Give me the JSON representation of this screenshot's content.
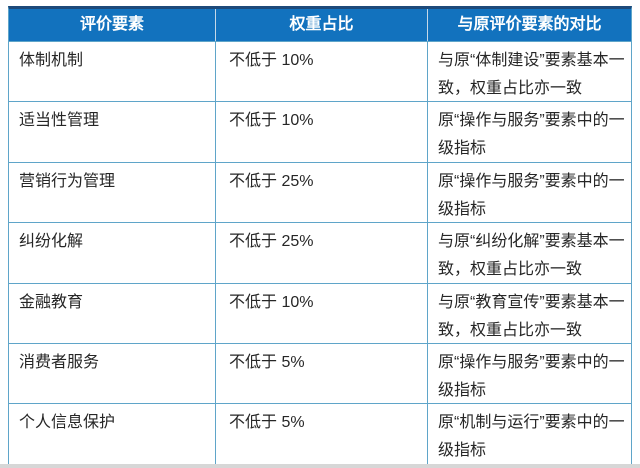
{
  "theme": {
    "header_bg": "#1272BE",
    "header_text": "#FFFFFF",
    "header_divider": "#C5D8E8",
    "border": "#5FA5C9",
    "top_bar": "#1D4A7A",
    "body_text": "#262626",
    "bottom_bar": "#D7D7D7"
  },
  "table": {
    "columns": [
      "评价要素",
      "权重占比",
      "与原评价要素的对比"
    ],
    "rows": [
      {
        "element": "体制机制",
        "weight": "不低于 10%",
        "comparison": "与原“体制建设”要素基本一致，权重占比亦一致"
      },
      {
        "element": "适当性管理",
        "weight": "不低于 10%",
        "comparison": "原“操作与服务”要素中的一级指标"
      },
      {
        "element": "营销行为管理",
        "weight": "不低于 25%",
        "comparison": "原“操作与服务”要素中的一级指标"
      },
      {
        "element": "纠纷化解",
        "weight": "不低于 25%",
        "comparison": "与原“纠纷化解”要素基本一致，权重占比亦一致"
      },
      {
        "element": "金融教育",
        "weight": "不低于 10%",
        "comparison": "与原“教育宣传”要素基本一致，权重占比亦一致"
      },
      {
        "element": "消费者服务",
        "weight": "不低于 5%",
        "comparison": "原“操作与服务”要素中的一级指标"
      },
      {
        "element": "个人信息保护",
        "weight": "不低于 5%",
        "comparison": "原“机制与运行”要素中的一级指标"
      }
    ]
  }
}
